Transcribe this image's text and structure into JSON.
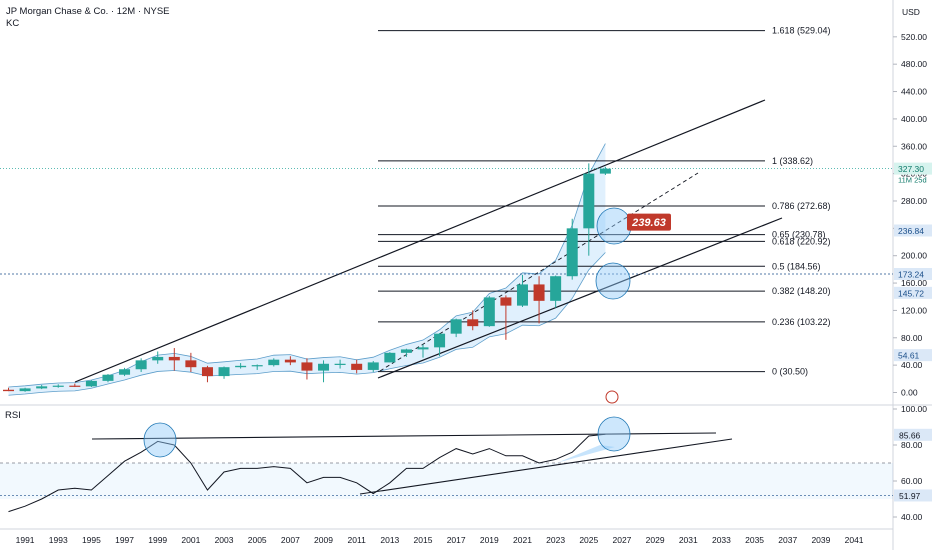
{
  "header": {
    "symbol_title": "JP Morgan Chase & Co. · 12M · NYSE",
    "indicator": "KC",
    "currency": "USD",
    "rsi_label": "RSI"
  },
  "chart_data": [
    {
      "type": "candlestick",
      "title": "JP Morgan Chase & Co. · 12M · NYSE",
      "x_ticks": [
        "1991",
        "1993",
        "1995",
        "1997",
        "1999",
        "2001",
        "2003",
        "2005",
        "2007",
        "2009",
        "2011",
        "2013",
        "2015",
        "2017",
        "2019",
        "2021",
        "2023",
        "2025",
        "2027",
        "2029",
        "2031",
        "2033",
        "2035",
        "2037",
        "2039",
        "2041"
      ],
      "y_ticks": [
        "520.00",
        "480.00",
        "440.00",
        "400.00",
        "360.00",
        "320.00",
        "280.00",
        "240.00",
        "200.00",
        "160.00",
        "120.00",
        "80.00",
        "40.00",
        "0.00"
      ],
      "ylim": [
        -15,
        550
      ],
      "candles": [
        {
          "year": 1990,
          "o": 4,
          "h": 7,
          "l": 2,
          "c": 2
        },
        {
          "year": 1991,
          "o": 2,
          "h": 7,
          "l": 1,
          "c": 6
        },
        {
          "year": 1992,
          "o": 6,
          "h": 11,
          "l": 5,
          "c": 9
        },
        {
          "year": 1993,
          "o": 9,
          "h": 12,
          "l": 7,
          "c": 10
        },
        {
          "year": 1994,
          "o": 10,
          "h": 13,
          "l": 8,
          "c": 9
        },
        {
          "year": 1995,
          "o": 9,
          "h": 18,
          "l": 8,
          "c": 17
        },
        {
          "year": 1996,
          "o": 17,
          "h": 27,
          "l": 15,
          "c": 26
        },
        {
          "year": 1997,
          "o": 26,
          "h": 36,
          "l": 24,
          "c": 34
        },
        {
          "year": 1998,
          "o": 34,
          "h": 50,
          "l": 30,
          "c": 47
        },
        {
          "year": 1999,
          "o": 47,
          "h": 60,
          "l": 42,
          "c": 52
        },
        {
          "year": 2000,
          "o": 52,
          "h": 65,
          "l": 32,
          "c": 47
        },
        {
          "year": 2001,
          "o": 47,
          "h": 58,
          "l": 30,
          "c": 37
        },
        {
          "year": 2002,
          "o": 37,
          "h": 39,
          "l": 15,
          "c": 24
        },
        {
          "year": 2003,
          "o": 24,
          "h": 38,
          "l": 20,
          "c": 37
        },
        {
          "year": 2004,
          "o": 37,
          "h": 43,
          "l": 35,
          "c": 39
        },
        {
          "year": 2005,
          "o": 39,
          "h": 41,
          "l": 33,
          "c": 40
        },
        {
          "year": 2006,
          "o": 40,
          "h": 50,
          "l": 38,
          "c": 48
        },
        {
          "year": 2007,
          "o": 48,
          "h": 53,
          "l": 40,
          "c": 44
        },
        {
          "year": 2008,
          "o": 44,
          "h": 50,
          "l": 19,
          "c": 32
        },
        {
          "year": 2009,
          "o": 32,
          "h": 47,
          "l": 15,
          "c": 42
        },
        {
          "year": 2010,
          "o": 42,
          "h": 48,
          "l": 35,
          "c": 42
        },
        {
          "year": 2011,
          "o": 42,
          "h": 48,
          "l": 28,
          "c": 33
        },
        {
          "year": 2012,
          "o": 33,
          "h": 46,
          "l": 30,
          "c": 44
        },
        {
          "year": 2013,
          "o": 44,
          "h": 59,
          "l": 44,
          "c": 58
        },
        {
          "year": 2014,
          "o": 58,
          "h": 64,
          "l": 52,
          "c": 63
        },
        {
          "year": 2015,
          "o": 63,
          "h": 70,
          "l": 51,
          "c": 66
        },
        {
          "year": 2016,
          "o": 66,
          "h": 87,
          "l": 53,
          "c": 86
        },
        {
          "year": 2017,
          "o": 86,
          "h": 108,
          "l": 81,
          "c": 107
        },
        {
          "year": 2018,
          "o": 107,
          "h": 120,
          "l": 91,
          "c": 97
        },
        {
          "year": 2019,
          "o": 97,
          "h": 141,
          "l": 96,
          "c": 139
        },
        {
          "year": 2020,
          "o": 139,
          "h": 142,
          "l": 77,
          "c": 127
        },
        {
          "year": 2021,
          "o": 127,
          "h": 172,
          "l": 125,
          "c": 158
        },
        {
          "year": 2022,
          "o": 158,
          "h": 170,
          "l": 101,
          "c": 134
        },
        {
          "year": 2023,
          "o": 134,
          "h": 171,
          "l": 124,
          "c": 170
        },
        {
          "year": 2024,
          "o": 170,
          "h": 254,
          "l": 165,
          "c": 240
        },
        {
          "year": 2025,
          "o": 240,
          "h": 335,
          "l": 200,
          "c": 320
        },
        {
          "year": 2026,
          "o": 320,
          "h": 330,
          "l": 318,
          "c": 327.3
        }
      ],
      "fibonacci": [
        {
          "label": "1.618 (529.04)",
          "value": 529.04
        },
        {
          "label": "1 (338.62)",
          "value": 338.62
        },
        {
          "label": "0.786 (272.68)",
          "value": 272.68
        },
        {
          "label": "0.65 (230.78)",
          "value": 230.78
        },
        {
          "label": "0.618 (220.92)",
          "value": 220.92
        },
        {
          "label": "0.5 (184.56)",
          "value": 184.56
        },
        {
          "label": "0.382 (148.20)",
          "value": 148.2
        },
        {
          "label": "0.236 (103.22)",
          "value": 103.22
        },
        {
          "label": "0 (30.50)",
          "value": 30.5
        }
      ],
      "callout": {
        "text": "239.63",
        "value": 239.63,
        "color": "#c0392b"
      },
      "price_labels": [
        {
          "text": "327.30",
          "value": 327.3,
          "bg": "#d6f3ee",
          "fg": "#0f7a6a"
        },
        {
          "text": "236.84",
          "value": 236.84,
          "bg": "#dbe8f7",
          "fg": "#1b4f8a"
        },
        {
          "text": "173.24",
          "value": 173.24,
          "bg": "#dbe8f7",
          "fg": "#1b4f8a"
        },
        {
          "text": "145.72",
          "value": 145.72,
          "bg": "#dbe8f7",
          "fg": "#1b4f8a"
        },
        {
          "text": "54.61",
          "value": 54.61,
          "bg": "#dbe8f7",
          "fg": "#1b4f8a"
        }
      ],
      "countdown": "11M 25d",
      "colors": {
        "up": "#26a69a",
        "down": "#c0392b",
        "channel": "#1f77b4",
        "grid": "#e0e3eb"
      }
    },
    {
      "type": "line",
      "title": "RSI",
      "y_ticks": [
        "100.00",
        "80.00",
        "60.00",
        "40.00"
      ],
      "ylim": [
        30,
        100
      ],
      "overbought": 70,
      "oversold": 30,
      "x": [
        1990,
        1991,
        1992,
        1993,
        1994,
        1995,
        1996,
        1997,
        1998,
        1999,
        2000,
        2001,
        2002,
        2003,
        2004,
        2005,
        2006,
        2007,
        2008,
        2009,
        2010,
        2011,
        2012,
        2013,
        2014,
        2015,
        2016,
        2017,
        2018,
        2019,
        2020,
        2021,
        2022,
        2023,
        2024,
        2025,
        2026
      ],
      "values": [
        43,
        46,
        50,
        55,
        56,
        55,
        63,
        71,
        76,
        82,
        80,
        70,
        55,
        65,
        67,
        67,
        68,
        67,
        59,
        62,
        62,
        59,
        53,
        59,
        67,
        67,
        73,
        78,
        75,
        78,
        74,
        74,
        70,
        72,
        76,
        85,
        86
      ],
      "price_labels": [
        {
          "text": "85.66",
          "value": 85.66
        },
        {
          "text": "51.97",
          "value": 51.97
        }
      ]
    }
  ]
}
